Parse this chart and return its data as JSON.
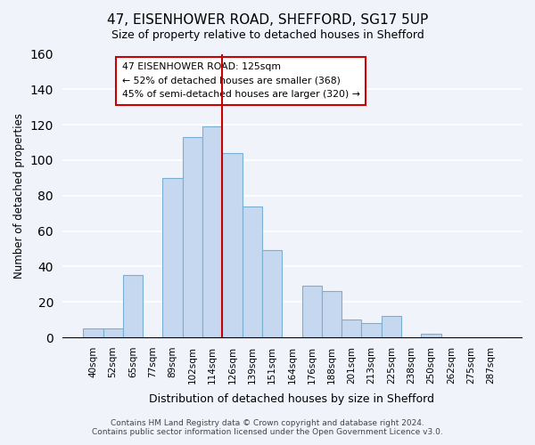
{
  "title_line1": "47, EISENHOWER ROAD, SHEFFORD, SG17 5UP",
  "title_line2": "Size of property relative to detached houses in Shefford",
  "xlabel": "Distribution of detached houses by size in Shefford",
  "ylabel": "Number of detached properties",
  "bar_labels": [
    "40sqm",
    "52sqm",
    "65sqm",
    "77sqm",
    "89sqm",
    "102sqm",
    "114sqm",
    "126sqm",
    "139sqm",
    "151sqm",
    "164sqm",
    "176sqm",
    "188sqm",
    "201sqm",
    "213sqm",
    "225sqm",
    "238sqm",
    "250sqm",
    "262sqm",
    "275sqm",
    "287sqm"
  ],
  "bar_values": [
    5,
    5,
    35,
    0,
    90,
    113,
    119,
    104,
    74,
    49,
    0,
    29,
    26,
    10,
    8,
    12,
    0,
    2,
    0,
    0,
    0
  ],
  "bar_color": "#c5d8f0",
  "bar_edge_color": "#7aafd4",
  "vline_color": "#cc0000",
  "annotation_title": "47 EISENHOWER ROAD: 125sqm",
  "annotation_line1": "← 52% of detached houses are smaller (368)",
  "annotation_line2": "45% of semi-detached houses are larger (320) →",
  "annotation_box_color": "#ffffff",
  "annotation_box_edge": "#cc0000",
  "ylim": [
    0,
    160
  ],
  "yticks": [
    0,
    20,
    40,
    60,
    80,
    100,
    120,
    140,
    160
  ],
  "footer_line1": "Contains HM Land Registry data © Crown copyright and database right 2024.",
  "footer_line2": "Contains public sector information licensed under the Open Government Licence v3.0.",
  "bg_color": "#f0f4fa"
}
